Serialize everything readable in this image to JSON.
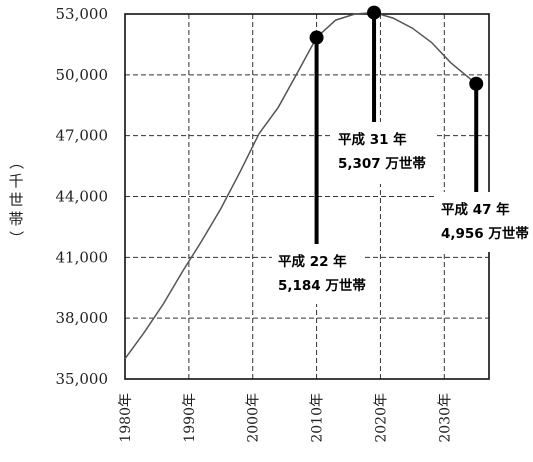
{
  "chart_data": {
    "type": "line",
    "title": "",
    "xlabel": "",
    "ylabel": "（千世帯）",
    "x_ticks": [
      "1980年",
      "1990年",
      "2000年",
      "2010年",
      "2020年",
      "2030年"
    ],
    "y_ticks": [
      "35,000",
      "38,000",
      "41,000",
      "44,000",
      "47,000",
      "50,000",
      "53,000"
    ],
    "xlim": [
      1980,
      2037
    ],
    "ylim": [
      35000,
      53000
    ],
    "grid": "dashed",
    "series": [
      {
        "x": [
          1980,
          1983,
          1986,
          1989,
          1992,
          1995,
          1998,
          2001,
          2004,
          2007,
          2010,
          2013,
          2016,
          2019,
          2022,
          2025,
          2028,
          2031,
          2035
        ],
        "y": [
          36000,
          37300,
          38700,
          40300,
          41800,
          43400,
          45200,
          47100,
          48400,
          50100,
          51840,
          52700,
          53000,
          53070,
          52800,
          52300,
          51600,
          50600,
          49560
        ],
        "color": "#555555"
      }
    ],
    "markers": [
      {
        "x": 2010,
        "y": 51840,
        "label_line1": "平成 22 年",
        "label_line2": "5,184 万世帯"
      },
      {
        "x": 2019,
        "y": 53070,
        "label_line1": "平成 31 年",
        "label_line2": "5,307 万世帯"
      },
      {
        "x": 2035,
        "y": 49560,
        "label_line1": "平成 47 年",
        "label_line2": "4,956 万世帯"
      }
    ]
  }
}
